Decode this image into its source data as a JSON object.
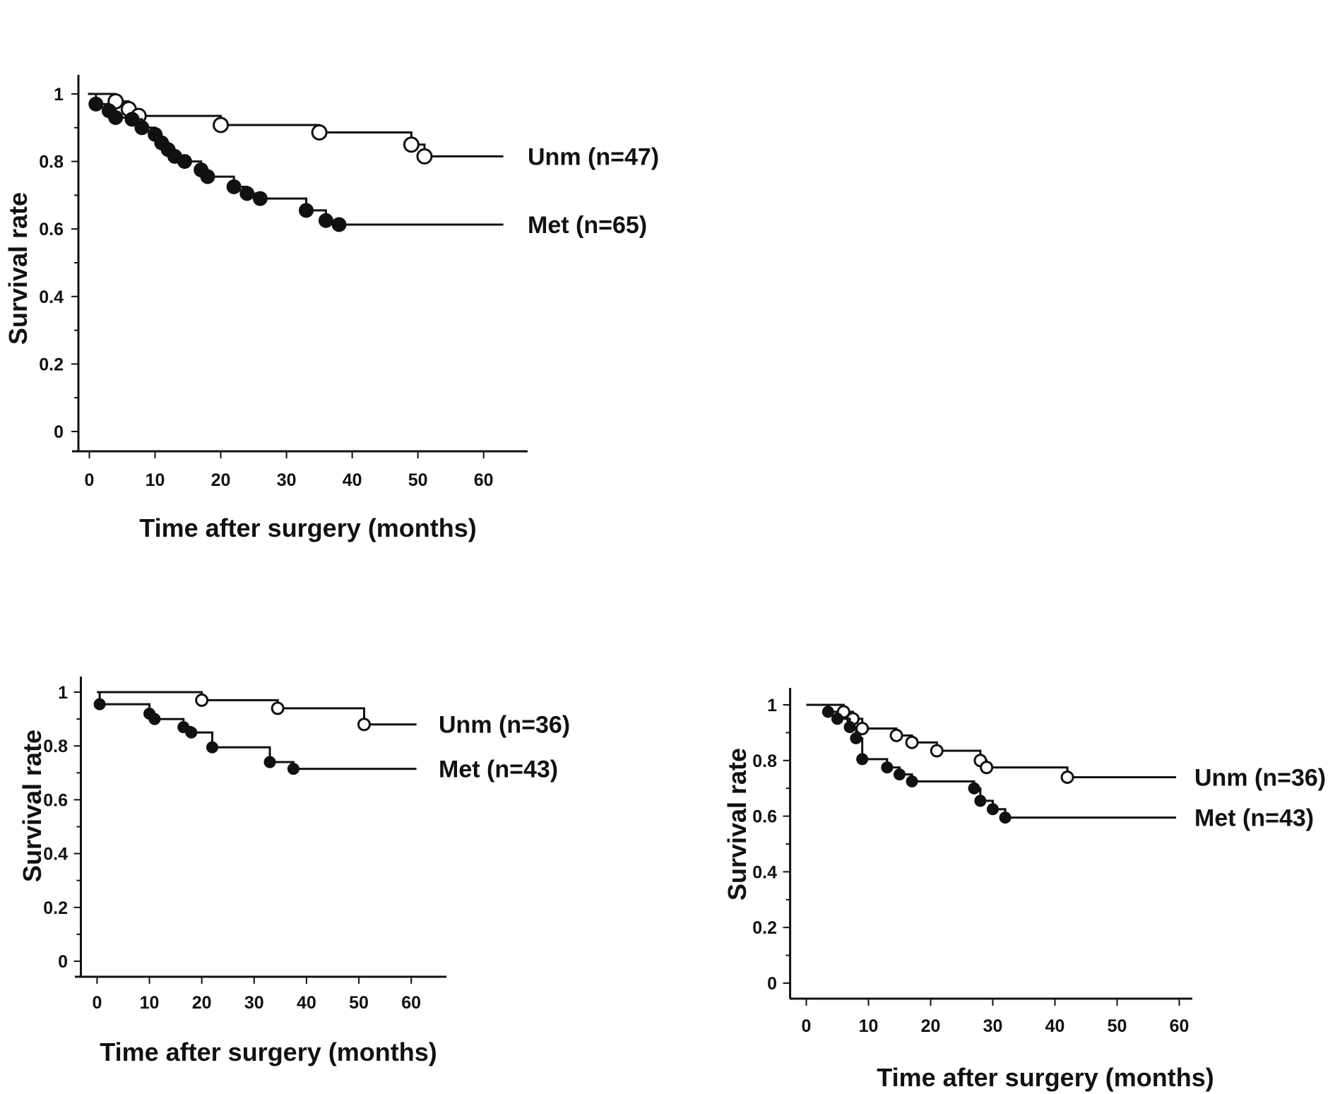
{
  "chart_data": [
    {
      "type": "line",
      "subtype": "kaplan-meier",
      "xlabel": "Time after surgery (months)",
      "ylabel": "Survival rate",
      "xlim": [
        0,
        60
      ],
      "ylim": [
        0,
        1
      ],
      "xticks": [
        "0",
        "10",
        "20",
        "30",
        "40",
        "50",
        "60"
      ],
      "yticks": [
        "0",
        "0.2",
        "0.4",
        "0.6",
        "0.8",
        "1"
      ],
      "series": [
        {
          "name": "Unm (n=47)",
          "marker": "open-circle",
          "end_time": 63,
          "events": [
            [
              4,
              0.978
            ],
            [
              6,
              0.955
            ],
            [
              7.5,
              0.935
            ],
            [
              20,
              0.908
            ],
            [
              35,
              0.886
            ],
            [
              49,
              0.85
            ],
            [
              51,
              0.815
            ]
          ]
        },
        {
          "name": "Met (n=65)",
          "marker": "filled-circle",
          "end_time": 63,
          "events": [
            [
              1,
              0.97
            ],
            [
              3,
              0.95
            ],
            [
              4,
              0.93
            ],
            [
              6.5,
              0.925
            ],
            [
              8,
              0.9
            ],
            [
              10,
              0.88
            ],
            [
              11,
              0.855
            ],
            [
              12,
              0.835
            ],
            [
              13,
              0.815
            ],
            [
              14.5,
              0.8
            ],
            [
              17,
              0.775
            ],
            [
              18,
              0.755
            ],
            [
              22,
              0.725
            ],
            [
              24,
              0.705
            ],
            [
              26,
              0.69
            ],
            [
              33,
              0.655
            ],
            [
              36,
              0.625
            ],
            [
              38,
              0.613
            ]
          ]
        }
      ]
    },
    {
      "type": "line",
      "subtype": "kaplan-meier",
      "xlabel": "Time after surgery (months)",
      "ylabel": "Survival rate",
      "xlim": [
        0,
        60
      ],
      "ylim": [
        0,
        1
      ],
      "xticks": [
        "0",
        "10",
        "20",
        "30",
        "40",
        "50",
        "60"
      ],
      "yticks": [
        "0",
        "0.2",
        "0.4",
        "0.6",
        "0.8",
        "1"
      ],
      "series": [
        {
          "name": "Unm (n=36)",
          "marker": "open-circle",
          "end_time": 61,
          "events": [
            [
              20,
              0.97
            ],
            [
              34.5,
              0.94
            ],
            [
              51,
              0.88
            ]
          ]
        },
        {
          "name": "Met (n=43)",
          "marker": "filled-circle",
          "end_time": 61,
          "events": [
            [
              0.5,
              0.955
            ],
            [
              10,
              0.92
            ],
            [
              11,
              0.9
            ],
            [
              16.5,
              0.87
            ],
            [
              18,
              0.85
            ],
            [
              22,
              0.795
            ],
            [
              33,
              0.74
            ],
            [
              37.5,
              0.715
            ]
          ]
        }
      ]
    },
    {
      "type": "line",
      "subtype": "kaplan-meier",
      "xlabel": "Time after surgery (months)",
      "ylabel": "Survival rate",
      "xlim": [
        0,
        60
      ],
      "ylim": [
        0,
        1
      ],
      "xticks": [
        "0",
        "10",
        "20",
        "30",
        "40",
        "50",
        "60"
      ],
      "yticks": [
        "0",
        "0.2",
        "0.4",
        "0.6",
        "0.8",
        "1"
      ],
      "series": [
        {
          "name": "Unm (n=36)",
          "marker": "open-circle",
          "end_time": 59.5,
          "events": [
            [
              6,
              0.975
            ],
            [
              7.5,
              0.95
            ],
            [
              9,
              0.915
            ],
            [
              14.5,
              0.89
            ],
            [
              17,
              0.865
            ],
            [
              21,
              0.835
            ],
            [
              28,
              0.8
            ],
            [
              29,
              0.775
            ],
            [
              42,
              0.74
            ]
          ]
        },
        {
          "name": "Met (n=43)",
          "marker": "filled-circle",
          "end_time": 59.5,
          "events": [
            [
              3.5,
              0.975
            ],
            [
              5,
              0.95
            ],
            [
              7,
              0.92
            ],
            [
              8,
              0.88
            ],
            [
              9,
              0.805
            ],
            [
              13,
              0.775
            ],
            [
              15,
              0.75
            ],
            [
              17,
              0.725
            ],
            [
              27,
              0.7
            ],
            [
              28,
              0.655
            ],
            [
              30,
              0.625
            ],
            [
              32,
              0.595
            ]
          ]
        }
      ]
    }
  ]
}
